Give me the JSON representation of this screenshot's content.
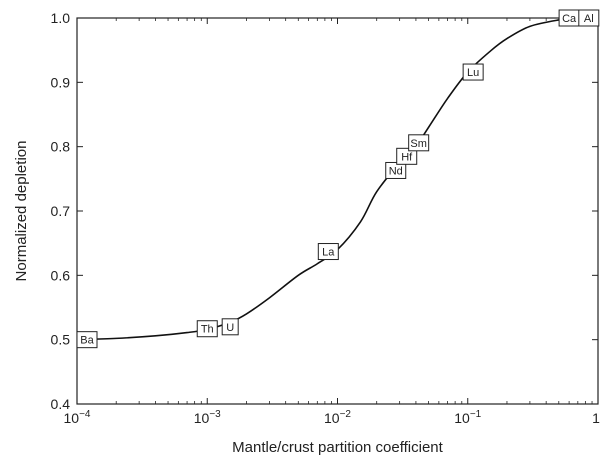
{
  "chart_data": {
    "type": "line",
    "title": "",
    "xlabel": "Mantle/crust partition coefficient",
    "ylabel": "Normalized depletion",
    "xscale": "log",
    "xlim": [
      0.0001,
      1
    ],
    "ylim": [
      0.4,
      1.0
    ],
    "grid": false,
    "x_ticks": [
      {
        "value": 0.0001,
        "base": "10",
        "exp": "−4"
      },
      {
        "value": 0.001,
        "base": "10",
        "exp": "−3"
      },
      {
        "value": 0.01,
        "base": "10",
        "exp": "−2"
      },
      {
        "value": 0.1,
        "base": "10",
        "exp": "−1"
      },
      {
        "value": 1,
        "base": "1",
        "exp": ""
      }
    ],
    "y_ticks": [
      {
        "value": 0.4,
        "label": "0.4"
      },
      {
        "value": 0.5,
        "label": "0.5"
      },
      {
        "value": 0.6,
        "label": "0.6"
      },
      {
        "value": 0.7,
        "label": "0.7"
      },
      {
        "value": 0.8,
        "label": "0.8"
      },
      {
        "value": 0.9,
        "label": "0.9"
      },
      {
        "value": 1.0,
        "label": "1.0"
      }
    ],
    "curve": {
      "x": [
        0.0001,
        0.0002,
        0.0004,
        0.0007,
        0.001,
        0.0015,
        0.002,
        0.003,
        0.005,
        0.007,
        0.01,
        0.015,
        0.02,
        0.03,
        0.04,
        0.05,
        0.07,
        0.1,
        0.15,
        0.2,
        0.3,
        0.5,
        0.7,
        1.0
      ],
      "y": [
        0.5,
        0.502,
        0.506,
        0.511,
        0.516,
        0.527,
        0.54,
        0.565,
        0.6,
        0.618,
        0.64,
        0.683,
        0.73,
        0.775,
        0.801,
        0.83,
        0.875,
        0.916,
        0.949,
        0.968,
        0.987,
        0.997,
        1.0,
        1.0
      ]
    },
    "elements": [
      {
        "label": "Ba",
        "x": 0.0001,
        "y": 0.5
      },
      {
        "label": "Th",
        "x": 0.001,
        "y": 0.517
      },
      {
        "label": "U",
        "x": 0.0015,
        "y": 0.52
      },
      {
        "label": "La",
        "x": 0.0085,
        "y": 0.637
      },
      {
        "label": "Nd",
        "x": 0.028,
        "y": 0.763
      },
      {
        "label": "Hf",
        "x": 0.034,
        "y": 0.785
      },
      {
        "label": "Sm",
        "x": 0.042,
        "y": 0.806
      },
      {
        "label": "Lu",
        "x": 0.11,
        "y": 0.916
      },
      {
        "label": "Ca",
        "x": 0.6,
        "y": 1.0
      },
      {
        "label": "Al",
        "x": 0.85,
        "y": 1.0
      }
    ]
  }
}
